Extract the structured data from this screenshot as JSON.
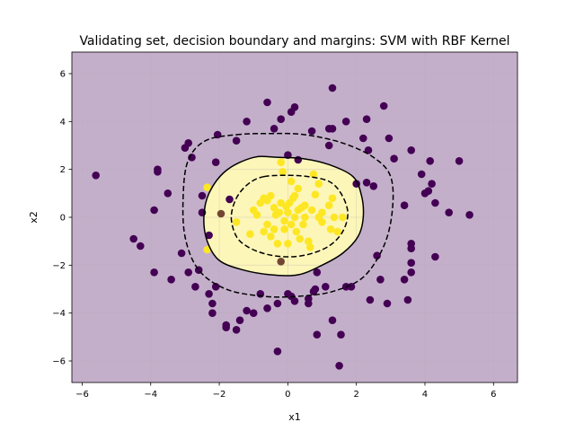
{
  "chart_data": {
    "type": "scatter",
    "title": "Validating set, decision boundary and margins: SVM with RBF Kernel",
    "xlabel": "x1",
    "ylabel": "x2",
    "xlim": [
      -6.3,
      6.7
    ],
    "ylim": [
      -6.9,
      6.9
    ],
    "xticks": [
      -6,
      -4,
      -2,
      0,
      2,
      4,
      6
    ],
    "yticks": [
      -6,
      -4,
      -2,
      0,
      2,
      4,
      6
    ],
    "grid": true,
    "colors": {
      "background_region": "#c4afcb",
      "inner_region": "#fdf6b9",
      "class0": "#440154",
      "class1": "#fde725",
      "boundary": "#000000"
    },
    "boundary": [
      [
        -1.0,
        2.5
      ],
      [
        -0.25,
        2.5
      ],
      [
        0.45,
        2.45
      ],
      [
        1.2,
        2.2
      ],
      [
        1.9,
        1.7
      ],
      [
        2.15,
        0.9
      ],
      [
        2.2,
        0.0
      ],
      [
        2.05,
        -0.8
      ],
      [
        1.6,
        -1.5
      ],
      [
        1.0,
        -2.0
      ],
      [
        0.3,
        -2.4
      ],
      [
        -0.5,
        -2.4
      ],
      [
        -1.3,
        -2.2
      ],
      [
        -2.0,
        -1.8
      ],
      [
        -2.35,
        -1.0
      ],
      [
        -2.45,
        0.0
      ],
      [
        -2.3,
        1.0
      ],
      [
        -1.8,
        1.95
      ]
    ],
    "margin_outer": [
      [
        -1.5,
        3.45
      ],
      [
        -0.5,
        3.5
      ],
      [
        0.5,
        3.45
      ],
      [
        1.6,
        3.1
      ],
      [
        2.5,
        2.5
      ],
      [
        3.0,
        1.7
      ],
      [
        3.05,
        0.3
      ],
      [
        2.8,
        -1.2
      ],
      [
        2.2,
        -2.5
      ],
      [
        1.3,
        -3.1
      ],
      [
        0.3,
        -3.3
      ],
      [
        -0.7,
        -3.3
      ],
      [
        -1.8,
        -3.0
      ],
      [
        -2.6,
        -2.2
      ],
      [
        -3.0,
        -0.8
      ],
      [
        -3.05,
        1.0
      ],
      [
        -2.9,
        2.4
      ],
      [
        -2.4,
        3.2
      ]
    ],
    "margin_inner": [
      [
        -0.7,
        1.7
      ],
      [
        0.0,
        1.75
      ],
      [
        0.6,
        1.7
      ],
      [
        1.2,
        1.5
      ],
      [
        1.55,
        1.0
      ],
      [
        1.75,
        0.2
      ],
      [
        1.6,
        -0.6
      ],
      [
        1.2,
        -1.2
      ],
      [
        0.6,
        -1.55
      ],
      [
        0.0,
        -1.65
      ],
      [
        -0.6,
        -1.55
      ],
      [
        -1.15,
        -1.25
      ],
      [
        -1.5,
        -0.8
      ],
      [
        -1.65,
        0.0
      ],
      [
        -1.5,
        0.8
      ],
      [
        -1.15,
        1.4
      ]
    ],
    "series": [
      {
        "color": "#440154",
        "points": [
          [
            -5.6,
            1.75
          ],
          [
            -4.5,
            -0.9
          ],
          [
            -4.3,
            -1.2
          ],
          [
            -3.9,
            0.3
          ],
          [
            -3.8,
            2.0
          ],
          [
            -3.8,
            1.9
          ],
          [
            -3.9,
            -2.3
          ],
          [
            -3.5,
            1.0
          ],
          [
            -3.4,
            -2.6
          ],
          [
            -3.1,
            -1.5
          ],
          [
            -3.0,
            2.9
          ],
          [
            -2.9,
            3.1
          ],
          [
            -2.9,
            -2.3
          ],
          [
            -2.8,
            2.5
          ],
          [
            -2.7,
            -2.9
          ],
          [
            -2.6,
            -2.2
          ],
          [
            -2.5,
            0.9
          ],
          [
            -2.5,
            0.2
          ],
          [
            -2.3,
            -3.2
          ],
          [
            -2.2,
            -3.6
          ],
          [
            -2.2,
            -4.0
          ],
          [
            -2.1,
            -2.9
          ],
          [
            -2.1,
            2.3
          ],
          [
            -2.05,
            3.45
          ],
          [
            -2.3,
            -0.75
          ],
          [
            -1.8,
            -4.5
          ],
          [
            -1.8,
            -4.6
          ],
          [
            -1.7,
            0.75
          ],
          [
            -1.5,
            -4.7
          ],
          [
            -1.5,
            3.2
          ],
          [
            -1.4,
            -4.3
          ],
          [
            -1.2,
            4.0
          ],
          [
            -1.2,
            -3.9
          ],
          [
            -1.0,
            -4.0
          ],
          [
            -0.8,
            -3.2
          ],
          [
            -0.6,
            4.8
          ],
          [
            -0.6,
            -3.8
          ],
          [
            -0.4,
            3.7
          ],
          [
            -0.3,
            -5.6
          ],
          [
            -0.3,
            -3.6
          ],
          [
            -0.2,
            4.1
          ],
          [
            0.0,
            2.6
          ],
          [
            0.0,
            -3.2
          ],
          [
            0.1,
            4.4
          ],
          [
            0.1,
            -3.3
          ],
          [
            0.2,
            4.6
          ],
          [
            0.2,
            -3.5
          ],
          [
            0.3,
            2.4
          ],
          [
            0.6,
            -3.6
          ],
          [
            0.6,
            -3.4
          ],
          [
            0.7,
            3.6
          ],
          [
            0.75,
            -3.1
          ],
          [
            0.8,
            -3.0
          ],
          [
            0.85,
            -2.3
          ],
          [
            0.85,
            -4.9
          ],
          [
            1.1,
            -2.9
          ],
          [
            1.2,
            3.0
          ],
          [
            1.2,
            3.7
          ],
          [
            1.3,
            3.7
          ],
          [
            1.3,
            5.4
          ],
          [
            1.3,
            -4.3
          ],
          [
            1.55,
            -4.9
          ],
          [
            1.5,
            -6.2
          ],
          [
            1.7,
            4.0
          ],
          [
            1.7,
            -2.9
          ],
          [
            1.85,
            -2.9
          ],
          [
            2.0,
            1.4
          ],
          [
            2.2,
            3.3
          ],
          [
            2.3,
            4.1
          ],
          [
            2.3,
            1.45
          ],
          [
            2.35,
            2.8
          ],
          [
            2.4,
            -3.45
          ],
          [
            2.5,
            1.3
          ],
          [
            2.6,
            -1.6
          ],
          [
            2.7,
            -2.6
          ],
          [
            2.8,
            4.65
          ],
          [
            2.9,
            -3.6
          ],
          [
            2.95,
            3.3
          ],
          [
            3.1,
            2.45
          ],
          [
            3.4,
            0.5
          ],
          [
            3.4,
            -2.6
          ],
          [
            3.5,
            -3.45
          ],
          [
            3.6,
            2.8
          ],
          [
            3.6,
            -1.3
          ],
          [
            3.6,
            -1.1
          ],
          [
            3.6,
            -2.3
          ],
          [
            3.6,
            -1.9
          ],
          [
            3.9,
            1.8
          ],
          [
            4.0,
            1.0
          ],
          [
            4.1,
            1.1
          ],
          [
            4.15,
            2.35
          ],
          [
            4.2,
            1.4
          ],
          [
            4.3,
            0.6
          ],
          [
            4.3,
            -1.65
          ],
          [
            4.7,
            0.2
          ],
          [
            5.0,
            2.35
          ],
          [
            5.3,
            0.1
          ]
        ]
      },
      {
        "color": "#fde725",
        "points": [
          [
            -2.35,
            1.25
          ],
          [
            -2.35,
            -1.35
          ],
          [
            -1.5,
            -0.2
          ],
          [
            -1.1,
            -0.7
          ],
          [
            -1.0,
            0.3
          ],
          [
            -0.9,
            0.1
          ],
          [
            -0.8,
            0.6
          ],
          [
            -0.7,
            0.8
          ],
          [
            -0.7,
            -0.6
          ],
          [
            -0.6,
            0.7
          ],
          [
            -0.6,
            -0.3
          ],
          [
            -0.5,
            0.9
          ],
          [
            -0.5,
            -0.8
          ],
          [
            -0.4,
            0.4
          ],
          [
            -0.4,
            -0.5
          ],
          [
            -0.35,
            0.1
          ],
          [
            -0.3,
            -1.1
          ],
          [
            -0.25,
            0.2
          ],
          [
            -0.2,
            0.6
          ],
          [
            -0.2,
            2.3
          ],
          [
            -0.15,
            1.9
          ],
          [
            -0.1,
            -0.15
          ],
          [
            -0.1,
            -0.5
          ],
          [
            -0.05,
            0.45
          ],
          [
            0.0,
            -1.1
          ],
          [
            0.0,
            0.2
          ],
          [
            0.05,
            0.6
          ],
          [
            0.1,
            -0.3
          ],
          [
            0.1,
            1.5
          ],
          [
            0.15,
            0.8
          ],
          [
            0.2,
            0.0
          ],
          [
            0.2,
            0.9
          ],
          [
            0.25,
            -0.6
          ],
          [
            0.3,
            1.2
          ],
          [
            0.3,
            0.3
          ],
          [
            0.35,
            -0.9
          ],
          [
            0.4,
            0.4
          ],
          [
            0.45,
            -0.3
          ],
          [
            0.5,
            0.0
          ],
          [
            0.5,
            0.5
          ],
          [
            0.6,
            -1.0
          ],
          [
            0.65,
            -1.25
          ],
          [
            0.7,
            0.3
          ],
          [
            0.75,
            1.8
          ],
          [
            0.8,
            0.95
          ],
          [
            0.9,
            0.0
          ],
          [
            1.0,
            0.2
          ],
          [
            1.0,
            -0.2
          ],
          [
            1.2,
            0.5
          ],
          [
            1.25,
            -0.5
          ],
          [
            1.3,
            0.8
          ],
          [
            1.35,
            0.0
          ],
          [
            1.45,
            -0.6
          ],
          [
            1.6,
            0.0
          ],
          [
            0.9,
            1.4
          ]
        ]
      },
      {
        "color": "#734633",
        "points": [
          [
            -1.95,
            0.15
          ],
          [
            -0.2,
            -1.85
          ]
        ]
      }
    ]
  }
}
